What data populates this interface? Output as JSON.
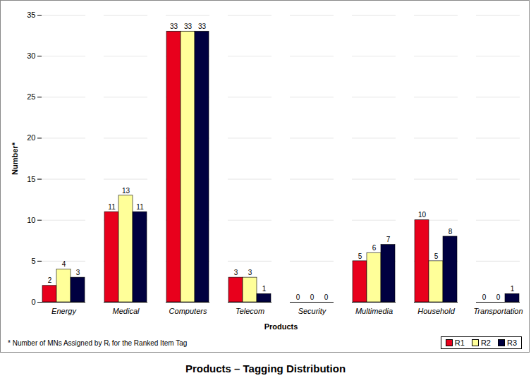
{
  "chart_data": {
    "type": "bar",
    "title": "Products – Tagging Distribution",
    "x_label": "Products",
    "y_label": "Number*",
    "annotations": [
      "* Number of MNs Assigned by Rᵢ for the Ranked Item Tag"
    ],
    "categories": [
      "Energy",
      "Medical",
      "Computers",
      "Telecom",
      "Security",
      "Multimedia",
      "Household",
      "Transportation"
    ],
    "series": [
      {
        "name": "R1",
        "color": "#e8001c",
        "values": [
          2,
          11,
          33,
          3,
          0,
          5,
          10,
          0
        ]
      },
      {
        "name": "R2",
        "color": "#ffff99",
        "values": [
          4,
          13,
          33,
          3,
          0,
          6,
          5,
          0
        ]
      },
      {
        "name": "R3",
        "color": "#000040",
        "values": [
          3,
          11,
          33,
          1,
          0,
          7,
          8,
          1
        ]
      }
    ],
    "ylim": [
      0,
      35
    ],
    "yticks": [
      0,
      5,
      10,
      15,
      20,
      25,
      30,
      35
    ],
    "grid": true,
    "data_labels": true,
    "legend": "bottom-right"
  }
}
